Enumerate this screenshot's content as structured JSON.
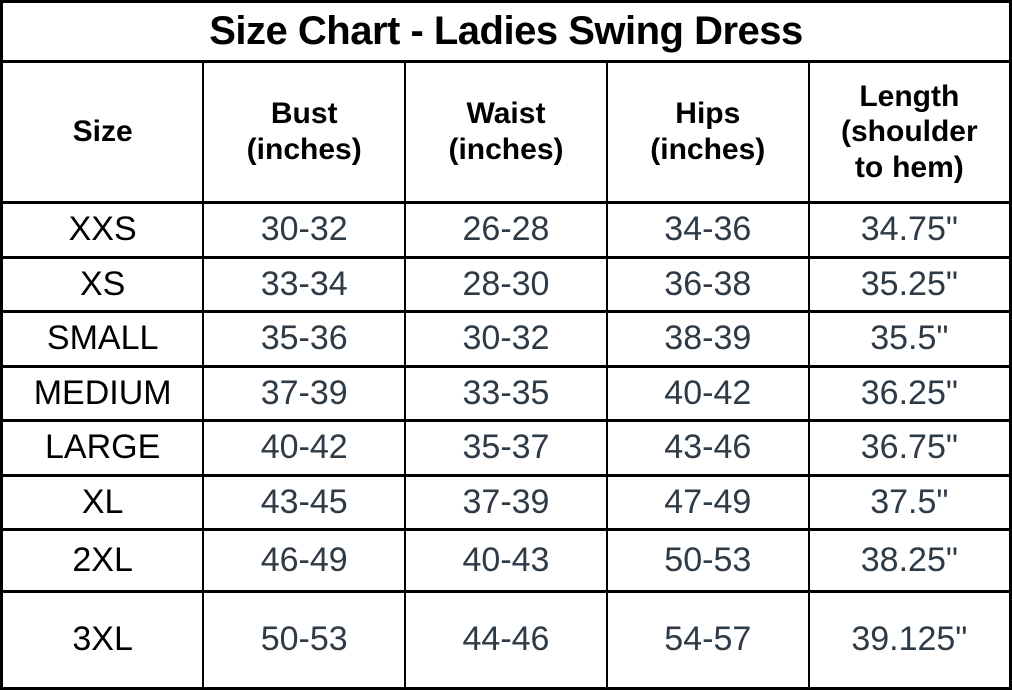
{
  "colors": {
    "border": "#000000",
    "title-text": "#000000",
    "header-text": "#000000",
    "size-text": "#000000",
    "value-text": "#2e3a46",
    "background": "#ffffff"
  },
  "size_chart": {
    "title": "Size Chart - Ladies Swing Dress",
    "columns": {
      "size": "Size",
      "bust": "Bust (inches)",
      "waist": "Waist (inches)",
      "hips": "Hips (inches)",
      "length": "Length (shoulder to hem)"
    },
    "rows": [
      {
        "size": "XXS",
        "bust": "30-32",
        "waist": "26-28",
        "hips": "34-36",
        "length": "34.75\""
      },
      {
        "size": "XS",
        "bust": "33-34",
        "waist": "28-30",
        "hips": "36-38",
        "length": "35.25\""
      },
      {
        "size": "SMALL",
        "bust": "35-36",
        "waist": "30-32",
        "hips": "38-39",
        "length": "35.5\""
      },
      {
        "size": "MEDIUM",
        "bust": "37-39",
        "waist": "33-35",
        "hips": "40-42",
        "length": "36.25\""
      },
      {
        "size": "LARGE",
        "bust": "40-42",
        "waist": "35-37",
        "hips": "43-46",
        "length": "36.75\""
      },
      {
        "size": "XL",
        "bust": "43-45",
        "waist": "37-39",
        "hips": "47-49",
        "length": "37.5\""
      },
      {
        "size": "2XL",
        "bust": "46-49",
        "waist": "40-43",
        "hips": "50-53",
        "length": "38.25\""
      },
      {
        "size": "3XL",
        "bust": "50-53",
        "waist": "44-46",
        "hips": "54-57",
        "length": "39.125\""
      }
    ]
  }
}
